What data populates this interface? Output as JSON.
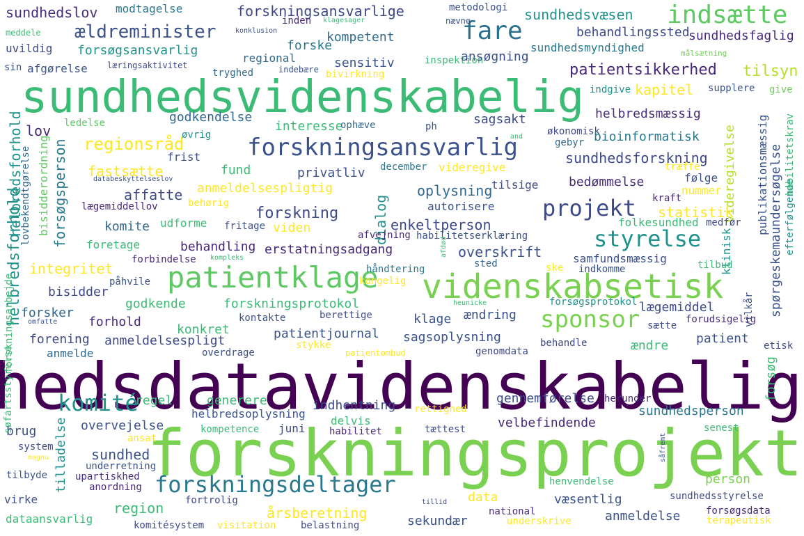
{
  "words": [
    {
      "text": "sundhedsdatavidenskabelig",
      "color": "#440154"
    },
    {
      "text": "forskningsprojekt",
      "color": "#7ad151"
    },
    {
      "text": "sundhedsvidenskabelig",
      "color": "#3bbb75"
    },
    {
      "text": "videnskabsetisk",
      "color": "#7ad151"
    },
    {
      "text": "patientklage",
      "color": "#5ec962"
    },
    {
      "text": "forskningsansvarlig",
      "color": "#3b528b"
    },
    {
      "text": "forskningsdeltager",
      "color": "#2a788e"
    },
    {
      "text": "indsætte",
      "color": "#5ec962"
    },
    {
      "text": "fare",
      "color": "#2c728e"
    },
    {
      "text": "projekt",
      "color": "#3e4989"
    },
    {
      "text": "sponsor",
      "color": "#7ad151"
    },
    {
      "text": "styrelse",
      "color": "#21918c"
    },
    {
      "text": "komité",
      "color": "#21918c"
    },
    {
      "text": "ældreminister",
      "color": "#3b528b"
    },
    {
      "text": "regionsråd",
      "color": "#fde725"
    },
    {
      "text": "patientsikkerhed",
      "color": "#482878"
    },
    {
      "text": "sundhedsvæsen",
      "color": "#21918c"
    },
    {
      "text": "forskningsansvarlige",
      "color": "#3e4989"
    },
    {
      "text": "sundhedslov",
      "color": "#472c7a"
    },
    {
      "text": "modtagelse",
      "color": "#2a788e"
    },
    {
      "text": "metodologi",
      "color": "#3b528b"
    },
    {
      "text": "meddele",
      "color": "#3bbb75"
    },
    {
      "text": "konklusion",
      "color": "#3b528b"
    },
    {
      "text": "inden",
      "color": "#482878"
    },
    {
      "text": "klagesager",
      "color": "#3bbb75"
    },
    {
      "text": "nævne",
      "color": "#3b528b"
    },
    {
      "text": "behandlingssted",
      "color": "#3e4989"
    },
    {
      "text": "sundhedsfaglig",
      "color": "#482878"
    },
    {
      "text": "målsætning",
      "color": "#6ece58"
    },
    {
      "text": "uvildig",
      "color": "#3e4989"
    },
    {
      "text": "forsøgsansvarlig",
      "color": "#21918c"
    },
    {
      "text": "forske",
      "color": "#2a788e"
    },
    {
      "text": "kompetent",
      "color": "#31688e"
    },
    {
      "text": "sundhedsmyndighed",
      "color": "#2a788e"
    },
    {
      "text": "sin",
      "color": "#3b528b"
    },
    {
      "text": "læringsaktivitet",
      "color": "#3e4989"
    },
    {
      "text": "regional",
      "color": "#31688e"
    },
    {
      "text": "sensitiv",
      "color": "#3b528b"
    },
    {
      "text": "inspektion",
      "color": "#3bbb75"
    },
    {
      "text": "afgørelse",
      "color": "#3b528b"
    },
    {
      "text": "tryghed",
      "color": "#31688e"
    },
    {
      "text": "indebære",
      "color": "#3b528b"
    },
    {
      "text": "bivirkning",
      "color": "#fde725"
    },
    {
      "text": "ansøgning",
      "color": "#3b528b"
    },
    {
      "text": "tilsyn",
      "color": "#b5de2b"
    },
    {
      "text": "kapitel",
      "color": "#fde725"
    },
    {
      "text": "indgive",
      "color": "#21918c"
    },
    {
      "text": "supplere",
      "color": "#3b528b"
    },
    {
      "text": "give",
      "color": "#6ece58"
    },
    {
      "text": "helbredsforhold",
      "color": "#21918c"
    },
    {
      "text": "ledelse",
      "color": "#5ec962"
    },
    {
      "text": "godkendelse",
      "color": "#31688e"
    },
    {
      "text": "interesse",
      "color": "#3bbb75"
    },
    {
      "text": "ophæve",
      "color": "#31688e"
    },
    {
      "text": "ph",
      "color": "#3b528b"
    },
    {
      "text": "sagsakt",
      "color": "#3e4989"
    },
    {
      "text": "helbredsmæssig",
      "color": "#472c7a"
    },
    {
      "text": "økonomisk",
      "color": "#3e4989"
    },
    {
      "text": "lov",
      "color": "#482878"
    },
    {
      "text": "and",
      "color": "#3bbb75"
    },
    {
      "text": "øvrig",
      "color": "#21918c"
    },
    {
      "text": "gebyr",
      "color": "#31688e"
    },
    {
      "text": "bioinformatisk",
      "color": "#2a788e"
    },
    {
      "text": "publikationsmæssig",
      "color": "#3b528b"
    },
    {
      "text": "efterfølgende",
      "color": "#21918c"
    },
    {
      "text": "habilitetskrav",
      "color": "#3bbb75"
    },
    {
      "text": "videregivelse",
      "color": "#b5de2b"
    },
    {
      "text": "spørgeskemaundersøgelse",
      "color": "#3b528b"
    },
    {
      "text": "lovbekendtgørelse",
      "color": "#31688e"
    },
    {
      "text": "forsøgsperson",
      "color": "#2a788e"
    },
    {
      "text": "bisidderordning",
      "color": "#5ec962"
    },
    {
      "text": "frist",
      "color": "#3b528b"
    },
    {
      "text": "december",
      "color": "#2a788e"
    },
    {
      "text": "videregive",
      "color": "#fde725"
    },
    {
      "text": "sundhedsforskning",
      "color": "#3e4989"
    },
    {
      "text": "træffe",
      "color": "#fde725"
    },
    {
      "text": "fastsætte",
      "color": "#fde725"
    },
    {
      "text": "fund",
      "color": "#3bbb75"
    },
    {
      "text": "privatliv",
      "color": "#3b528b"
    },
    {
      "text": "følge",
      "color": "#3b528b"
    },
    {
      "text": "databeskyttelseslov",
      "color": "#3b528b"
    },
    {
      "text": "anmeldelsespligtig",
      "color": "#fde725"
    },
    {
      "text": "oplysning",
      "color": "#31688e"
    },
    {
      "text": "tilsige",
      "color": "#3e4989"
    },
    {
      "text": "bedømmelse",
      "color": "#472c7a"
    },
    {
      "text": "nummer",
      "color": "#fde725"
    },
    {
      "text": "affatte",
      "color": "#3e4989"
    },
    {
      "text": "lægemiddellov",
      "color": "#482878"
    },
    {
      "text": "behørig",
      "color": "#fde725"
    },
    {
      "text": "autorisere",
      "color": "#3b528b"
    },
    {
      "text": "kraft",
      "color": "#482878"
    },
    {
      "text": "dialog",
      "color": "#21918c"
    },
    {
      "text": "forskning",
      "color": "#3e4989"
    },
    {
      "text": "statistik",
      "color": "#fde725"
    },
    {
      "text": "helbredsforhold2",
      "color": "#21918c"
    },
    {
      "text": "komite",
      "color": "#31688e"
    },
    {
      "text": "udforme",
      "color": "#3bbb75"
    },
    {
      "text": "fritage",
      "color": "#3b528b"
    },
    {
      "text": "viden",
      "color": "#fde725"
    },
    {
      "text": "enkeltperson",
      "color": "#3e4989"
    },
    {
      "text": "folkesundhed",
      "color": "#3bbb75"
    },
    {
      "text": "medfør",
      "color": "#3e4989"
    },
    {
      "text": "afvejning",
      "color": "#472c7a"
    },
    {
      "text": "habilitetserklæring",
      "color": "#3b528b"
    },
    {
      "text": "foretage",
      "color": "#3bbb75"
    },
    {
      "text": "behandling",
      "color": "#482878"
    },
    {
      "text": "erstatningsadgang",
      "color": "#482878"
    },
    {
      "text": "overskrift",
      "color": "#3b528b"
    },
    {
      "text": "afdød",
      "color": "#3bbb75"
    },
    {
      "text": "forbindelse",
      "color": "#482878"
    },
    {
      "text": "kompleks",
      "color": "#3bbb75"
    },
    {
      "text": "sted",
      "color": "#31688e"
    },
    {
      "text": "samfundsmæssig",
      "color": "#3b528b"
    },
    {
      "text": "klinisk",
      "color": "#21918c"
    },
    {
      "text": "tilbud",
      "color": "#3bbb75"
    },
    {
      "text": "integritet",
      "color": "#fde725"
    },
    {
      "text": "håndtering",
      "color": "#2a788e"
    },
    {
      "text": "ske",
      "color": "#fde725"
    },
    {
      "text": "indkomme",
      "color": "#3b528b"
    },
    {
      "text": "bisidder",
      "color": "#3e4989"
    },
    {
      "text": "påhvile",
      "color": "#3b528b"
    },
    {
      "text": "kongelig",
      "color": "#fde725"
    },
    {
      "text": "forsker",
      "color": "#31688e"
    },
    {
      "text": "godkende",
      "color": "#3bbb75"
    },
    {
      "text": "forskningsprotokol",
      "color": "#3bbb75"
    },
    {
      "text": "heunicke",
      "color": "#3bbb75"
    },
    {
      "text": "forsøgsprotokol",
      "color": "#21918c"
    },
    {
      "text": "lægemiddel",
      "color": "#3e4989"
    },
    {
      "text": "vilkår",
      "color": "#3b528b"
    },
    {
      "text": "forskningsarbejde",
      "color": "#3bbb75"
    },
    {
      "text": "omfatte",
      "color": "#3b528b"
    },
    {
      "text": "forhold",
      "color": "#482878"
    },
    {
      "text": "kontakte",
      "color": "#3b528b"
    },
    {
      "text": "berettige",
      "color": "#3e4989"
    },
    {
      "text": "klage",
      "color": "#3b528b"
    },
    {
      "text": "ændring",
      "color": "#3b528b"
    },
    {
      "text": "forudsigelig",
      "color": "#472c7a"
    },
    {
      "text": "sætte",
      "color": "#3e4989"
    },
    {
      "text": "konkret",
      "color": "#3bbb75"
    },
    {
      "text": "patientjournal",
      "color": "#3b528b"
    },
    {
      "text": "forening",
      "color": "#3e4989"
    },
    {
      "text": "anmeldelsespligt",
      "color": "#3e4989"
    },
    {
      "text": "sagsoplysning",
      "color": "#3b528b"
    },
    {
      "text": "behandle",
      "color": "#3e4989"
    },
    {
      "text": "patient",
      "color": "#3b528b"
    },
    {
      "text": "ændre",
      "color": "#3bbb75"
    },
    {
      "text": "etisk",
      "color": "#3e4989"
    },
    {
      "text": "anmelde",
      "color": "#31688e"
    },
    {
      "text": "stykke",
      "color": "#fde725"
    },
    {
      "text": "patientombud",
      "color": "#fde725"
    },
    {
      "text": "genomdata",
      "color": "#3e4989"
    },
    {
      "text": "søfartsstyrelse",
      "color": "#3bbb75"
    },
    {
      "text": "overdrage",
      "color": "#3b528b"
    },
    {
      "text": "forsøg",
      "color": "#3bbb75"
    },
    {
      "text": "regel",
      "color": "#3bbb75"
    },
    {
      "text": "generere",
      "color": "#3bbb75"
    },
    {
      "text": "indhentning",
      "color": "#3e4989"
    },
    {
      "text": "gennemførelse",
      "color": "#3e4989"
    },
    {
      "text": "herunder",
      "color": "#482878"
    },
    {
      "text": "sundhedsperson",
      "color": "#2a788e"
    },
    {
      "text": "helbredsoplysning",
      "color": "#3b528b"
    },
    {
      "text": "rettighed",
      "color": "#fde725"
    },
    {
      "text": "brug",
      "color": "#3b528b"
    },
    {
      "text": "overvejelse",
      "color": "#3b528b"
    },
    {
      "text": "delvis",
      "color": "#3bbb75"
    },
    {
      "text": "velbefindende",
      "color": "#482878"
    },
    {
      "text": "tættest",
      "color": "#3e4989"
    },
    {
      "text": "system",
      "color": "#3e4989"
    },
    {
      "text": "ansat",
      "color": "#fde725"
    },
    {
      "text": "kompetence",
      "color": "#3bbb75"
    },
    {
      "text": "juni",
      "color": "#3e4989"
    },
    {
      "text": "habilitet",
      "color": "#482878"
    },
    {
      "text": "senest",
      "color": "#3bbb75"
    },
    {
      "text": "tilladelse",
      "color": "#21918c"
    },
    {
      "text": "sundhed",
      "color": "#3b528b"
    },
    {
      "text": "magnu",
      "color": "#fde725"
    },
    {
      "text": "underretning",
      "color": "#3b528b"
    },
    {
      "text": "såfremt",
      "color": "#3b528b"
    },
    {
      "text": "person",
      "color": "#7ad151"
    },
    {
      "text": "tilbyde",
      "color": "#3b528b"
    },
    {
      "text": "upartiskhed",
      "color": "#472c7a"
    },
    {
      "text": "henvendelse",
      "color": "#3bbb75"
    },
    {
      "text": "anordning",
      "color": "#482878"
    },
    {
      "text": "sundhedsstyrelse",
      "color": "#3e4989"
    },
    {
      "text": "terapeutisk",
      "color": "#fde725"
    },
    {
      "text": "virke",
      "color": "#3b528b"
    },
    {
      "text": "region",
      "color": "#3bbb75"
    },
    {
      "text": "data",
      "color": "#fde725"
    },
    {
      "text": "tillid",
      "color": "#3e4989"
    },
    {
      "text": "væsentlig",
      "color": "#3b528b"
    },
    {
      "text": "fortrolig",
      "color": "#3e4989"
    },
    {
      "text": "årsberetning",
      "color": "#fde725"
    },
    {
      "text": "national",
      "color": "#472c7a"
    },
    {
      "text": "forsøgsdata",
      "color": "#482878"
    },
    {
      "text": "sekundær",
      "color": "#3b528b"
    },
    {
      "text": "anmeldelse",
      "color": "#3b528b"
    },
    {
      "text": "dataansvarlig",
      "color": "#3bbb75"
    },
    {
      "text": "komitésystem",
      "color": "#3e4989"
    },
    {
      "text": "visitation",
      "color": "#fde725"
    },
    {
      "text": "belastning",
      "color": "#3e4989"
    },
    {
      "text": "underskrive",
      "color": "#fde725"
    }
  ]
}
